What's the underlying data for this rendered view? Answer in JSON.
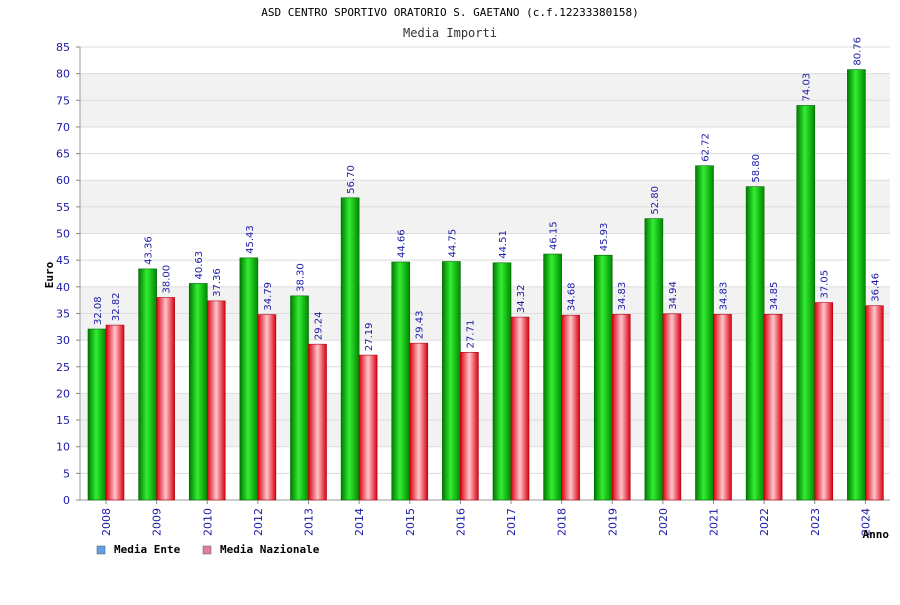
{
  "chart_data": {
    "type": "bar",
    "title": "ASD CENTRO SPORTIVO ORATORIO S. GAETANO (c.f.12233380158)",
    "subtitle": "Media Importi",
    "xlabel": "Anno",
    "ylabel": "Euro",
    "ylim": [
      0,
      85
    ],
    "yticks": [
      "0",
      "5",
      "10",
      "15",
      "20",
      "25",
      "30",
      "35",
      "40",
      "45",
      "50",
      "55",
      "60",
      "65",
      "70",
      "75",
      "80",
      "85"
    ],
    "grid": true,
    "legend_position": "bottom-left",
    "categories": [
      "2008",
      "2009",
      "2010",
      "2012",
      "2013",
      "2014",
      "2015",
      "2016",
      "2017",
      "2018",
      "2019",
      "2020",
      "2021",
      "2022",
      "2023",
      "2024"
    ],
    "series": [
      {
        "name": "Media Ente",
        "color": "#00bb00",
        "legend_color": "#5da0e8",
        "values": [
          32.08,
          43.36,
          40.63,
          45.43,
          38.3,
          56.7,
          44.66,
          44.75,
          44.51,
          46.15,
          45.93,
          52.8,
          62.72,
          58.8,
          74.03,
          80.76
        ],
        "labels": [
          "32.08",
          "43.36",
          "40.63",
          "45.43",
          "38.30",
          "56.70",
          "44.66",
          "44.75",
          "44.51",
          "46.15",
          "45.93",
          "52.80",
          "62.72",
          "58.80",
          "74.03",
          "80.76"
        ]
      },
      {
        "name": "Media Nazionale",
        "color": "#ee1c2c",
        "legend_color": "#e080a8",
        "values": [
          32.82,
          38.0,
          37.36,
          34.79,
          29.24,
          27.19,
          29.43,
          27.71,
          34.32,
          34.68,
          34.83,
          34.94,
          34.83,
          34.85,
          37.05,
          36.46
        ],
        "labels": [
          "32.82",
          "38.00",
          "37.36",
          "34.79",
          "29.24",
          "27.19",
          "29.43",
          "27.71",
          "34.32",
          "34.68",
          "34.83",
          "34.94",
          "34.83",
          "34.85",
          "37.05",
          "36.46"
        ]
      }
    ]
  }
}
